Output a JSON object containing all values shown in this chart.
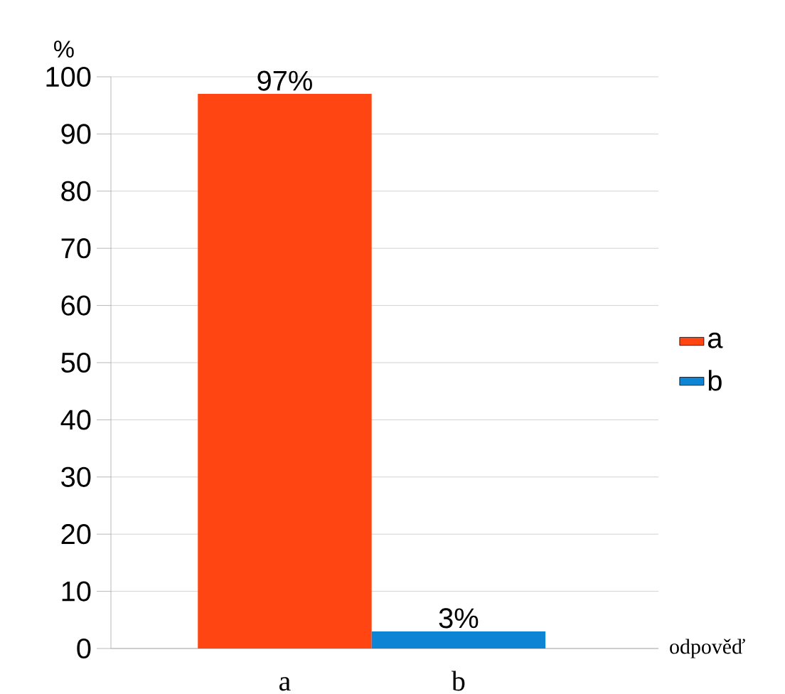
{
  "chart_data": {
    "type": "bar",
    "ylabel": "%",
    "xlabel": "odpověď",
    "categories": [
      "a",
      "b"
    ],
    "series": [
      {
        "name": "a",
        "color": "#ff4512",
        "values": [
          97,
          null
        ],
        "value_labels": [
          "97%",
          null
        ]
      },
      {
        "name": "b",
        "color": "#0d84d4",
        "values": [
          null,
          3
        ],
        "value_labels": [
          null,
          "3%"
        ]
      }
    ],
    "ylim": [
      0,
      100
    ],
    "yticks": [
      0,
      10,
      20,
      30,
      40,
      50,
      60,
      70,
      80,
      90,
      100
    ],
    "grid": "y",
    "legend": "right"
  }
}
